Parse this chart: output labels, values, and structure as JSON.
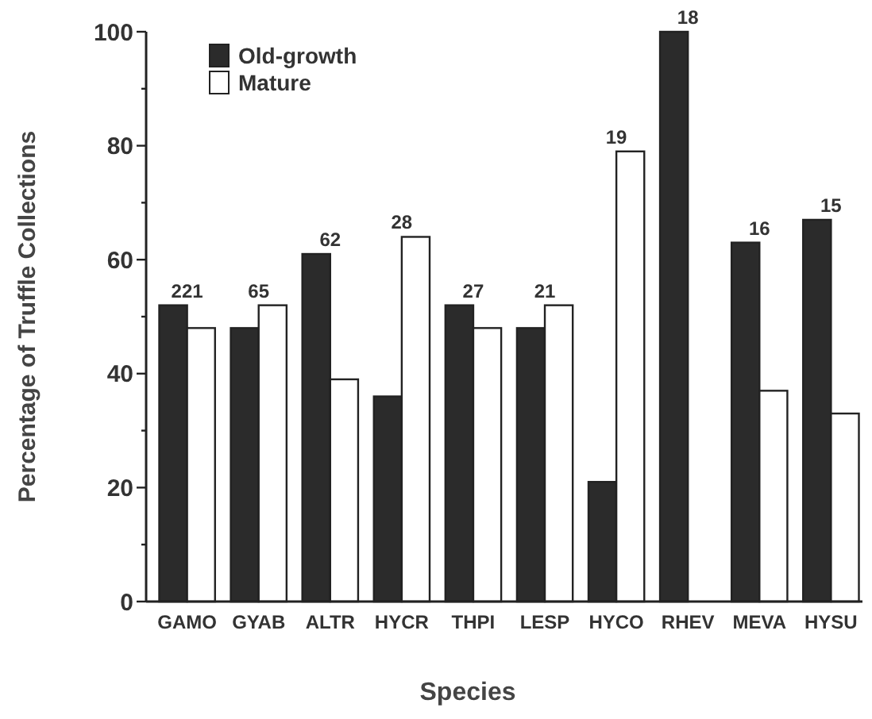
{
  "chart_data": {
    "type": "bar",
    "xlabel": "Species",
    "ylabel": "Percentage of Truffle Collections",
    "categories": [
      "GAMO",
      "GYAB",
      "ALTR",
      "HYCR",
      "THPI",
      "LESP",
      "HYCO",
      "RHEV",
      "MEVA",
      "HYSU"
    ],
    "series": [
      {
        "name": "Old-growth",
        "color": "#2b2b2b",
        "values": [
          52,
          48,
          61,
          36,
          52,
          48,
          21,
          100,
          63,
          67
        ]
      },
      {
        "name": "Mature",
        "color": "#ffffff",
        "values": [
          48,
          52,
          39,
          64,
          48,
          52,
          79,
          0,
          37,
          33
        ]
      }
    ],
    "ylim": [
      0,
      100
    ],
    "yticks": [
      0,
      {
        "value": 10,
        "label": null
      },
      20,
      {
        "value": 30,
        "label": null
      },
      40,
      {
        "value": 50,
        "label": null
      },
      60,
      {
        "value": 70,
        "label": null
      },
      80,
      {
        "value": 90,
        "label": null
      },
      100
    ],
    "legend": "top left",
    "annotations": [
      {
        "text": "221",
        "x": "GAMO",
        "y": 52
      },
      {
        "text": "65",
        "x": "GYAB",
        "y": 52
      },
      {
        "text": "62",
        "x": "ALTR",
        "y": 61
      },
      {
        "text": "28",
        "x": "HYCR",
        "y": 64
      },
      {
        "text": "27",
        "x": "THPI",
        "y": 52
      },
      {
        "text": "21",
        "x": "LESP",
        "y": 52
      },
      {
        "text": "19",
        "x": "HYCO",
        "y": 79
      },
      {
        "text": "18",
        "x": "RHEV",
        "y": 100
      },
      {
        "text": "16",
        "x": "MEVA",
        "y": 63
      },
      {
        "text": "15",
        "x": "HYSU",
        "y": 67
      }
    ]
  }
}
